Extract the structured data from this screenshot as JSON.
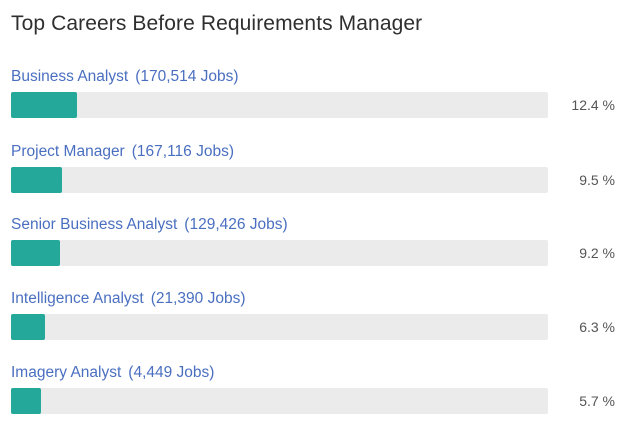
{
  "title": "Top Careers Before Requirements Manager",
  "colors": {
    "bar_fill": "#24a89a",
    "bar_track": "#ebebeb",
    "link": "#4a6fc0"
  },
  "careers": [
    {
      "name": "Business Analyst",
      "jobs": "(170,514 Jobs)",
      "percent": 12.4,
      "percent_label": "12.4 %"
    },
    {
      "name": "Project Manager",
      "jobs": "(167,116 Jobs)",
      "percent": 9.5,
      "percent_label": "9.5 %"
    },
    {
      "name": "Senior Business Analyst",
      "jobs": "(129,426 Jobs)",
      "percent": 9.2,
      "percent_label": "9.2 %"
    },
    {
      "name": "Intelligence Analyst",
      "jobs": "(21,390 Jobs)",
      "percent": 6.3,
      "percent_label": "6.3 %"
    },
    {
      "name": "Imagery Analyst",
      "jobs": "(4,449 Jobs)",
      "percent": 5.7,
      "percent_label": "5.7 %"
    }
  ]
}
